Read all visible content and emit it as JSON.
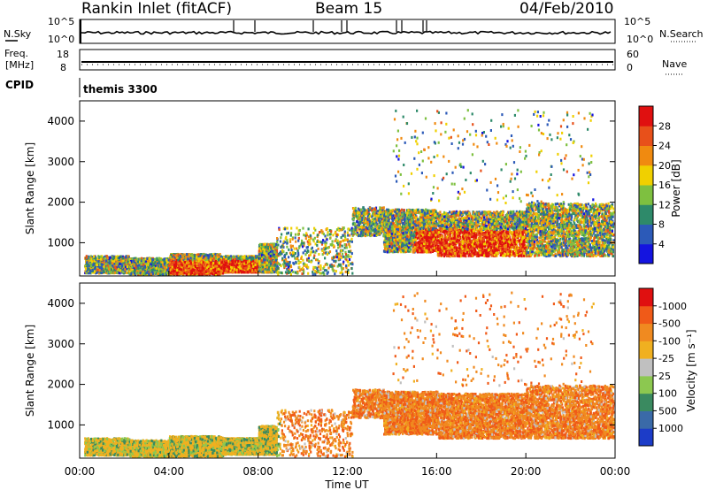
{
  "header": {
    "site": "Rankin Inlet (fitACF)",
    "beam": "Beam 15",
    "date": "04/Feb/2010"
  },
  "noise_panel": {
    "left_label": "N.Sky",
    "right_label": "N.Search",
    "left_ticks": [
      "10^5",
      "10^0"
    ],
    "right_ticks": [
      "10^5",
      "10^0"
    ]
  },
  "freq_panel": {
    "left_label_line1": "Freq.",
    "left_label_line2": "[MHz]",
    "right_label": "Nave",
    "left_ticks": [
      "18",
      "8"
    ],
    "right_ticks": [
      "60",
      "0"
    ]
  },
  "cpid_panel": {
    "label": "CPID",
    "text": "themis 3300"
  },
  "chart_data": [
    {
      "type": "heatmap",
      "quantity": "Power",
      "ylabel": "Slant Range [km]",
      "ylim": [
        180,
        4500
      ],
      "xlim": [
        0,
        24
      ],
      "y_ticks": [
        1000,
        2000,
        3000,
        4000
      ],
      "colorbar": {
        "label": "Power [dB]",
        "ticks": [
          "4",
          "8",
          "12",
          "16",
          "20",
          "24",
          "28"
        ],
        "colors": [
          "#1414e0",
          "#2c5ab8",
          "#2e8a6a",
          "#7ec040",
          "#f0d000",
          "#f08a10",
          "#e8501a",
          "#e01010"
        ]
      }
    },
    {
      "type": "heatmap",
      "quantity": "Velocity",
      "ylabel": "Slant Range [km]",
      "ylim": [
        180,
        4500
      ],
      "xlim": [
        0,
        24
      ],
      "y_ticks": [
        1000,
        2000,
        3000,
        4000
      ],
      "colorbar": {
        "label": "Velocity [m s⁻¹]",
        "ticks": [
          "1000",
          "500",
          "100",
          "25",
          "-25",
          "-100",
          "-500",
          "-1000"
        ],
        "colors": [
          "#1c3cc8",
          "#3a6aa8",
          "#3a8a60",
          "#8cc850",
          "#c0c0c0",
          "#f0b020",
          "#f08a20",
          "#f05a18",
          "#e01010"
        ]
      }
    }
  ],
  "xaxis": {
    "ticks": [
      "00:00",
      "04:00",
      "08:00",
      "12:00",
      "16:00",
      "20:00",
      "00:00"
    ],
    "label": "Time UT"
  }
}
